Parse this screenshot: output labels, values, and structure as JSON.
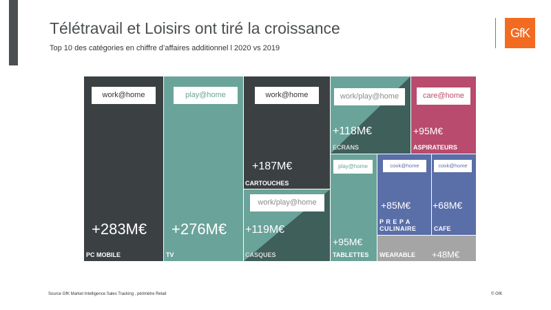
{
  "header": {
    "title": "Télétravail et Loisirs ont tiré la croissance",
    "subtitle": "Top 10 des catégories en chiffre d’affaires additionnel l 2020 vs 2019",
    "logo_text": "GfK"
  },
  "footer": {
    "source": "Source GfK Market Intelligence Sales Tracking , périmètre Retail",
    "copyright": "© GfK"
  },
  "colors": {
    "dark": "#3b4043",
    "teal": "#6aa39a",
    "dark_teal": "#3f5f5b",
    "pink": "#b84b6e",
    "blue": "#5a6ea8",
    "grey": "#a5a5a5",
    "brand_orange": "#f26b21"
  },
  "chart_data": {
    "type": "treemap",
    "unit": "M€",
    "items": [
      {
        "category": "PC MOBILE",
        "value_label": "+283M€",
        "value": 283,
        "tag": "work@home",
        "color": "dark"
      },
      {
        "category": "TV",
        "value_label": "+276M€",
        "value": 276,
        "tag": "play@home",
        "color": "teal"
      },
      {
        "category": "CARTOUCHES",
        "value_label": "+187M€",
        "value": 187,
        "tag": "work@home",
        "color": "dark"
      },
      {
        "category": "CASQUES",
        "value_label": "+119M€",
        "value": 119,
        "tag": "work/play@home",
        "color": "split"
      },
      {
        "category": "ECRANS",
        "value_label": "+118M€",
        "value": 118,
        "tag": "work/play@home",
        "color": "split"
      },
      {
        "category": "ASPIRATEURS",
        "value_label": "+95M€",
        "value": 95,
        "tag": "care@home",
        "color": "pink"
      },
      {
        "category": "TABLETTES",
        "value_label": "+95M€",
        "value": 95,
        "tag": "play@home",
        "color": "teal"
      },
      {
        "category": "PREPA CULINAIRE",
        "value_label": "+85M€",
        "value": 85,
        "tag": "cook@home",
        "color": "blue"
      },
      {
        "category": "CAFE",
        "value_label": "+68M€",
        "value": 68,
        "tag": "cook@home",
        "color": "blue"
      },
      {
        "category": "WEARABLE",
        "value_label": "+48M€",
        "value": 48,
        "tag": "",
        "color": "grey"
      }
    ]
  }
}
